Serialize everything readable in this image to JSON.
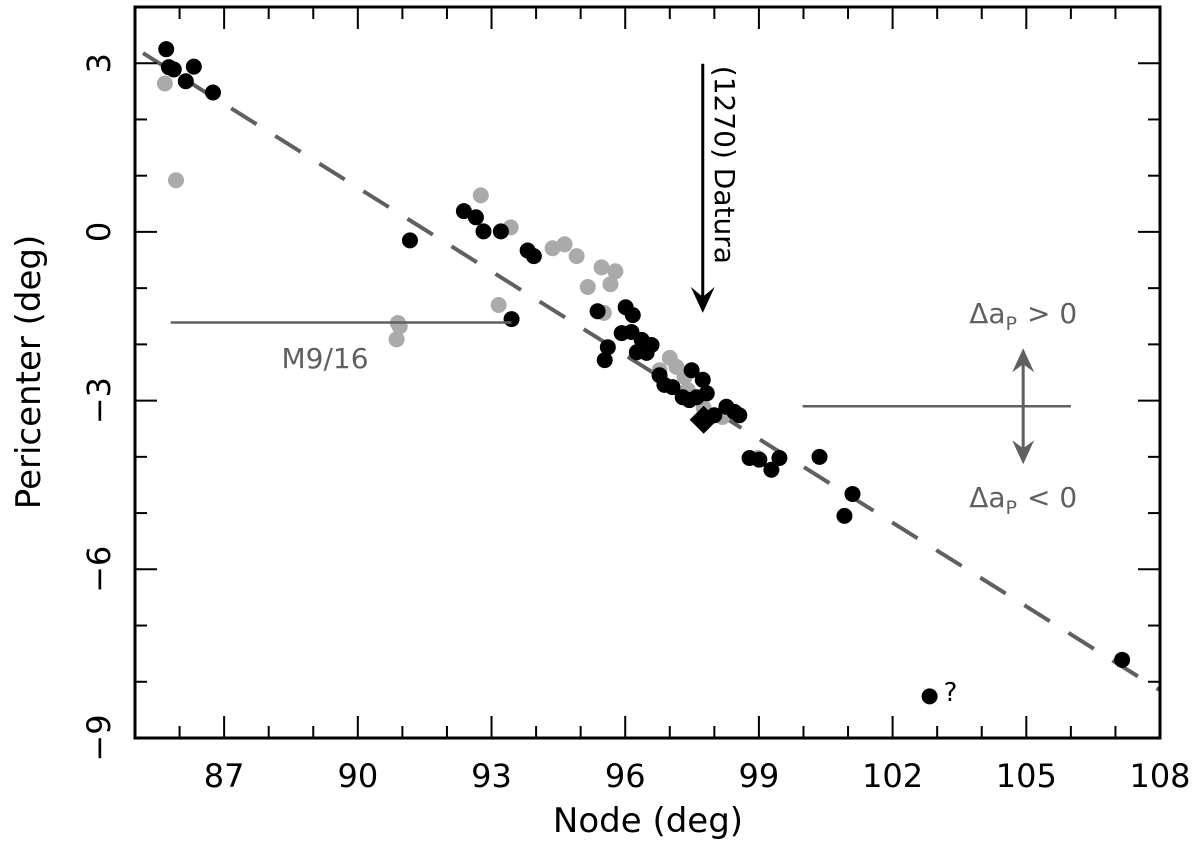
{
  "chart_data": {
    "type": "scatter",
    "xlabel": "Node (deg)",
    "ylabel": "Pericenter (deg)",
    "xlim": [
      85,
      108
    ],
    "ylim": [
      -9,
      4
    ],
    "xticks": [
      87,
      90,
      93,
      96,
      99,
      102,
      105,
      108
    ],
    "xtick_labels": [
      "87",
      "90",
      "93",
      "96",
      "99",
      "102",
      "105",
      "108"
    ],
    "yticks": [
      3,
      0,
      -3,
      -6,
      -9
    ],
    "ytick_labels": [
      "3",
      "0",
      "−3",
      "−6",
      "−9"
    ],
    "grid": false,
    "colors": {
      "black_points": "#000000",
      "gray_points": "#aaaaaa",
      "trend_line": "#606060",
      "annotation": "#606060"
    },
    "series": [
      {
        "color": "#000000",
        "points": [
          [
            85.7,
            3.25
          ],
          [
            85.76,
            2.93
          ],
          [
            85.87,
            2.89
          ],
          [
            86.14,
            2.68
          ],
          [
            86.32,
            2.94
          ],
          [
            86.75,
            2.48
          ],
          [
            91.17,
            -0.15
          ],
          [
            92.38,
            0.37
          ],
          [
            92.65,
            0.26
          ],
          [
            92.82,
            0.01
          ],
          [
            93.21,
            0.01
          ],
          [
            93.45,
            -1.55
          ],
          [
            93.81,
            -0.33
          ],
          [
            93.95,
            -0.43
          ],
          [
            95.38,
            -1.41
          ],
          [
            96.01,
            -1.34
          ],
          [
            96.17,
            -1.48
          ],
          [
            95.92,
            -1.8
          ],
          [
            96.14,
            -1.78
          ],
          [
            96.37,
            -1.92
          ],
          [
            96.59,
            -2.01
          ],
          [
            95.61,
            -2.05
          ],
          [
            95.54,
            -2.28
          ],
          [
            96.26,
            -2.14
          ],
          [
            96.48,
            -2.15
          ],
          [
            97.49,
            -2.46
          ],
          [
            97.74,
            -2.63
          ],
          [
            97.83,
            -2.87
          ],
          [
            97.6,
            -2.94
          ],
          [
            98.45,
            -3.2
          ],
          [
            98.27,
            -3.11
          ],
          [
            97.06,
            -2.76
          ],
          [
            97.29,
            -2.94
          ],
          [
            98.0,
            -3.26
          ],
          [
            97.44,
            -2.99
          ],
          [
            96.77,
            -2.55
          ],
          [
            96.88,
            -2.72
          ],
          [
            98.56,
            -3.26
          ],
          [
            98.79,
            -4.02
          ],
          [
            99.01,
            -4.05
          ],
          [
            99.28,
            -4.23
          ],
          [
            99.46,
            -4.02
          ],
          [
            100.36,
            -4.0
          ],
          [
            100.92,
            -5.05
          ],
          [
            101.1,
            -4.66
          ],
          [
            102.83,
            -8.26
          ],
          [
            107.15,
            -7.61
          ]
        ]
      },
      {
        "color": "#aaaaaa",
        "points": [
          [
            85.67,
            2.64
          ],
          [
            85.92,
            0.92
          ],
          [
            92.76,
            0.65
          ],
          [
            93.43,
            0.08
          ],
          [
            94.37,
            -0.29
          ],
          [
            94.64,
            -0.22
          ],
          [
            94.91,
            -0.43
          ],
          [
            95.47,
            -0.63
          ],
          [
            95.78,
            -0.7
          ],
          [
            95.16,
            -0.98
          ],
          [
            95.67,
            -0.93
          ],
          [
            95.52,
            -1.44
          ],
          [
            93.16,
            -1.3
          ],
          [
            90.9,
            -1.62
          ],
          [
            90.94,
            -1.68
          ],
          [
            90.87,
            -1.91
          ],
          [
            97.0,
            -2.24
          ],
          [
            97.15,
            -2.4
          ],
          [
            96.77,
            -2.46
          ],
          [
            97.33,
            -2.58
          ],
          [
            97.4,
            -2.81
          ],
          [
            97.76,
            -3.13
          ],
          [
            98.18,
            -3.29
          ],
          [
            98.97,
            -4.02
          ]
        ]
      }
    ],
    "datura_marker": {
      "shape": "diamond",
      "point": [
        97.76,
        -3.34
      ]
    },
    "trend_line": {
      "style": "dashed",
      "from": [
        85.18,
        3.18
      ],
      "to": [
        108,
        -8.15
      ]
    },
    "annotations": {
      "datura": {
        "text": "(1270) Datura",
        "arrow_x": 97.74,
        "arrow_from_y": 2.99,
        "arrow_to_y": -1.44
      },
      "m916": {
        "text": "M9/16",
        "line_x": [
          85.8,
          93.45
        ],
        "line_y": -1.61
      },
      "delta": {
        "line_x": [
          99.98,
          106.0
        ],
        "line_y": -3.1,
        "arrow_x": 104.93,
        "upper_text": "Δa",
        "upper_sub": "P",
        "upper_rel": "> 0",
        "lower_text": "Δa",
        "lower_sub": "P",
        "lower_rel": "< 0"
      },
      "question": {
        "text": "?",
        "at": [
          103.3,
          -8.2
        ]
      }
    }
  }
}
